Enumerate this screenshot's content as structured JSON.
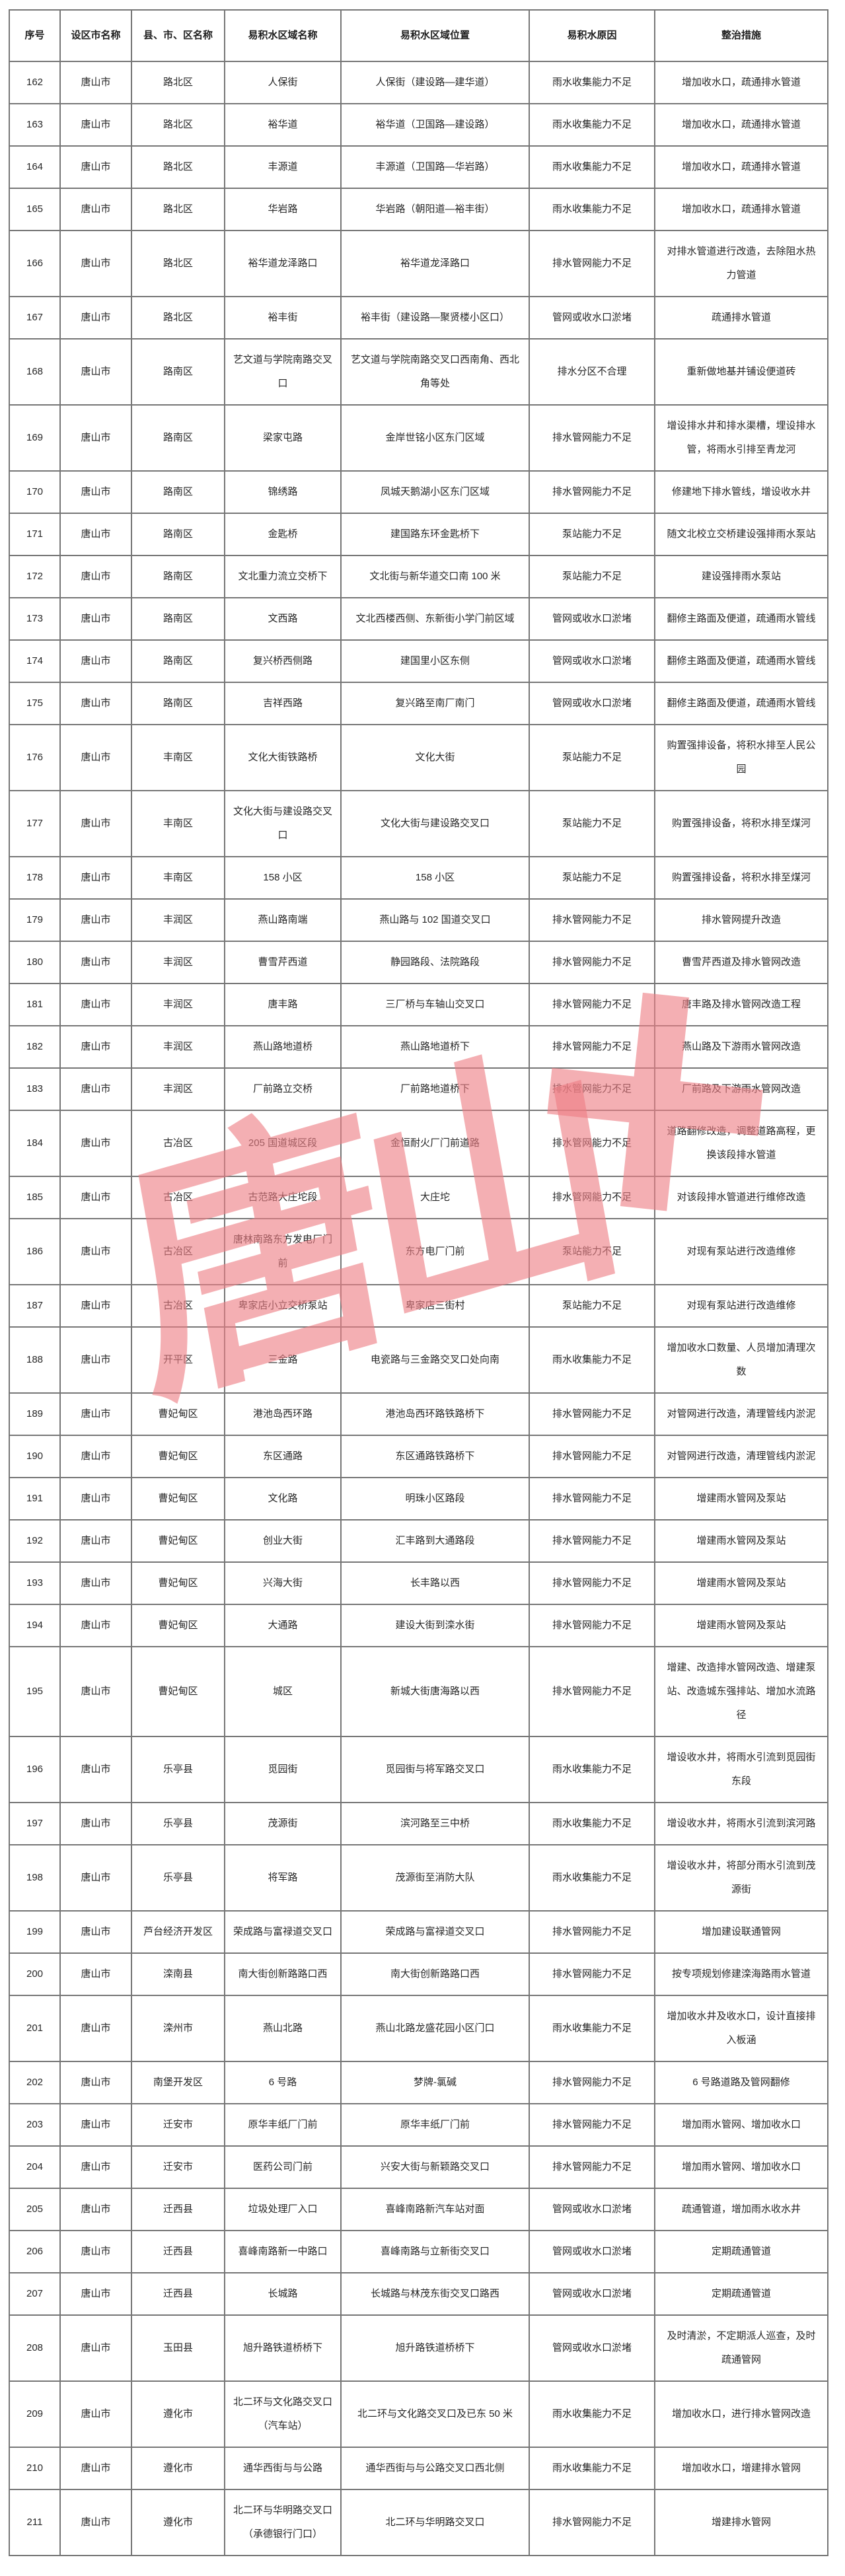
{
  "watermark": {
    "text": "唐山",
    "plus": "+",
    "color": "rgba(238,126,133,0.62)"
  },
  "table": {
    "border_color": "#767676",
    "headers": [
      "序号",
      "设区市名称",
      "县、市、区名称",
      "易积水区域名称",
      "易积水区域位置",
      "易积水原因",
      "整治措施"
    ],
    "rows": [
      [
        "162",
        "唐山市",
        "路北区",
        "人保街",
        "人保街（建设路—建华道）",
        "雨水收集能力不足",
        "增加收水口，疏通排水管道"
      ],
      [
        "163",
        "唐山市",
        "路北区",
        "裕华道",
        "裕华道（卫国路—建设路）",
        "雨水收集能力不足",
        "增加收水口，疏通排水管道"
      ],
      [
        "164",
        "唐山市",
        "路北区",
        "丰源道",
        "丰源道（卫国路—华岩路）",
        "雨水收集能力不足",
        "增加收水口，疏通排水管道"
      ],
      [
        "165",
        "唐山市",
        "路北区",
        "华岩路",
        "华岩路（朝阳道—裕丰街）",
        "雨水收集能力不足",
        "增加收水口，疏通排水管道"
      ],
      [
        "166",
        "唐山市",
        "路北区",
        "裕华道龙泽路口",
        "裕华道龙泽路口",
        "排水管网能力不足",
        "对排水管道进行改造，去除阻水热力管道"
      ],
      [
        "167",
        "唐山市",
        "路北区",
        "裕丰街",
        "裕丰街（建设路—聚贤楼小区口）",
        "管网或收水口淤堵",
        "疏通排水管道"
      ],
      [
        "168",
        "唐山市",
        "路南区",
        "艺文道与学院南路交叉口",
        "艺文道与学院南路交叉口西南角、西北角等处",
        "排水分区不合理",
        "重新做地基并铺设便道砖"
      ],
      [
        "169",
        "唐山市",
        "路南区",
        "梁家屯路",
        "金岸世铭小区东门区域",
        "排水管网能力不足",
        "增设排水井和排水渠槽，埋设排水管，将雨水引排至青龙河"
      ],
      [
        "170",
        "唐山市",
        "路南区",
        "锦绣路",
        "凤城天鹅湖小区东门区域",
        "排水管网能力不足",
        "修建地下排水管线，增设收水井"
      ],
      [
        "171",
        "唐山市",
        "路南区",
        "金匙桥",
        "建国路东环金匙桥下",
        "泵站能力不足",
        "随文北校立交桥建设强排雨水泵站"
      ],
      [
        "172",
        "唐山市",
        "路南区",
        "文北重力流立交桥下",
        "文北街与新华道交口南 100 米",
        "泵站能力不足",
        "建设强排雨水泵站"
      ],
      [
        "173",
        "唐山市",
        "路南区",
        "文西路",
        "文北西楼西侧、东新街小学门前区域",
        "管网或收水口淤堵",
        "翻修主路面及便道，疏通雨水管线"
      ],
      [
        "174",
        "唐山市",
        "路南区",
        "复兴桥西侧路",
        "建国里小区东侧",
        "管网或收水口淤堵",
        "翻修主路面及便道，疏通雨水管线"
      ],
      [
        "175",
        "唐山市",
        "路南区",
        "吉祥西路",
        "复兴路至南厂南门",
        "管网或收水口淤堵",
        "翻修主路面及便道，疏通雨水管线"
      ],
      [
        "176",
        "唐山市",
        "丰南区",
        "文化大街铁路桥",
        "文化大街",
        "泵站能力不足",
        "购置强排设备，将积水排至人民公园"
      ],
      [
        "177",
        "唐山市",
        "丰南区",
        "文化大街与建设路交叉口",
        "文化大街与建设路交叉口",
        "泵站能力不足",
        "购置强排设备，将积水排至煤河"
      ],
      [
        "178",
        "唐山市",
        "丰南区",
        "158 小区",
        "158 小区",
        "泵站能力不足",
        "购置强排设备，将积水排至煤河"
      ],
      [
        "179",
        "唐山市",
        "丰润区",
        "燕山路南端",
        "燕山路与 102 国道交叉口",
        "排水管网能力不足",
        "排水管网提升改造"
      ],
      [
        "180",
        "唐山市",
        "丰润区",
        "曹雪芹西道",
        "静园路段、法院路段",
        "排水管网能力不足",
        "曹雪芹西道及排水管网改造"
      ],
      [
        "181",
        "唐山市",
        "丰润区",
        "唐丰路",
        "三厂桥与车轴山交叉口",
        "排水管网能力不足",
        "唐丰路及排水管网改造工程"
      ],
      [
        "182",
        "唐山市",
        "丰润区",
        "燕山路地道桥",
        "燕山路地道桥下",
        "排水管网能力不足",
        "燕山路及下游雨水管网改造"
      ],
      [
        "183",
        "唐山市",
        "丰润区",
        "厂前路立交桥",
        "厂前路地道桥下",
        "排水管网能力不足",
        "厂前路及下游雨水管网改造"
      ],
      [
        "184",
        "唐山市",
        "古冶区",
        "205 国道城区段",
        "金恒耐火厂门前道路",
        "排水管网能力不足",
        "道路翻修改造，调整道路高程，更换该段排水管道"
      ],
      [
        "185",
        "唐山市",
        "古冶区",
        "古范路大庄坨段",
        "大庄坨",
        "排水管网能力不足",
        "对该段排水管道进行维修改造"
      ],
      [
        "186",
        "唐山市",
        "古冶区",
        "唐林南路东方发电厂门前",
        "东方电厂门前",
        "泵站能力不足",
        "对现有泵站进行改造维修"
      ],
      [
        "187",
        "唐山市",
        "古冶区",
        "卑家店小立交桥泵站",
        "卑家店三街村",
        "泵站能力不足",
        "对现有泵站进行改造维修"
      ],
      [
        "188",
        "唐山市",
        "开平区",
        "三金路",
        "电瓷路与三金路交叉口处向南",
        "雨水收集能力不足",
        "增加收水口数量、人员增加清理次数"
      ],
      [
        "189",
        "唐山市",
        "曹妃甸区",
        "港池岛西环路",
        "港池岛西环路铁路桥下",
        "排水管网能力不足",
        "对管网进行改造，清理管线内淤泥"
      ],
      [
        "190",
        "唐山市",
        "曹妃甸区",
        "东区通路",
        "东区通路铁路桥下",
        "排水管网能力不足",
        "对管网进行改造，清理管线内淤泥"
      ],
      [
        "191",
        "唐山市",
        "曹妃甸区",
        "文化路",
        "明珠小区路段",
        "排水管网能力不足",
        "增建雨水管网及泵站"
      ],
      [
        "192",
        "唐山市",
        "曹妃甸区",
        "创业大街",
        "汇丰路到大通路段",
        "排水管网能力不足",
        "增建雨水管网及泵站"
      ],
      [
        "193",
        "唐山市",
        "曹妃甸区",
        "兴海大街",
        "长丰路以西",
        "排水管网能力不足",
        "增建雨水管网及泵站"
      ],
      [
        "194",
        "唐山市",
        "曹妃甸区",
        "大通路",
        "建设大街到滦水街",
        "排水管网能力不足",
        "增建雨水管网及泵站"
      ],
      [
        "195",
        "唐山市",
        "曹妃甸区",
        "城区",
        "新城大街唐海路以西",
        "排水管网能力不足",
        "增建、改造排水管网改造、增建泵站、改造城东强排站、增加水流路径"
      ],
      [
        "196",
        "唐山市",
        "乐亭县",
        "觅园街",
        "觅园街与将军路交叉口",
        "雨水收集能力不足",
        "增设收水井，将雨水引流到觅园街东段"
      ],
      [
        "197",
        "唐山市",
        "乐亭县",
        "茂源街",
        "滨河路至三中桥",
        "雨水收集能力不足",
        "增设收水井，将雨水引流到滨河路"
      ],
      [
        "198",
        "唐山市",
        "乐亭县",
        "将军路",
        "茂源街至消防大队",
        "雨水收集能力不足",
        "增设收水井，将部分雨水引流到茂源街"
      ],
      [
        "199",
        "唐山市",
        "芦台经济开发区",
        "荣成路与富禄道交叉口",
        "荣成路与富禄道交叉口",
        "排水管网能力不足",
        "增加建设联通管网"
      ],
      [
        "200",
        "唐山市",
        "滦南县",
        "南大街创新路路口西",
        "南大街创新路路口西",
        "排水管网能力不足",
        "按专项规划修建滦海路雨水管道"
      ],
      [
        "201",
        "唐山市",
        "滦州市",
        "燕山北路",
        "燕山北路龙盛花园小区门口",
        "雨水收集能力不足",
        "增加收水井及收水口，设计直接排入板涵"
      ],
      [
        "202",
        "唐山市",
        "南堡开发区",
        "6 号路",
        "梦牌-氯碱",
        "排水管网能力不足",
        "6 号路道路及管网翻修"
      ],
      [
        "203",
        "唐山市",
        "迁安市",
        "原华丰纸厂门前",
        "原华丰纸厂门前",
        "排水管网能力不足",
        "增加雨水管网、增加收水口"
      ],
      [
        "204",
        "唐山市",
        "迁安市",
        "医药公司门前",
        "兴安大街与新颖路交叉口",
        "排水管网能力不足",
        "增加雨水管网、增加收水口"
      ],
      [
        "205",
        "唐山市",
        "迁西县",
        "垃圾处理厂入口",
        "喜峰南路新汽车站对面",
        "管网或收水口淤堵",
        "疏通管道，增加雨水收水井"
      ],
      [
        "206",
        "唐山市",
        "迁西县",
        "喜峰南路新一中路口",
        "喜峰南路与立新街交叉口",
        "管网或收水口淤堵",
        "定期疏通管道"
      ],
      [
        "207",
        "唐山市",
        "迁西县",
        "长城路",
        "长城路与林茂东街交叉口路西",
        "管网或收水口淤堵",
        "定期疏通管道"
      ],
      [
        "208",
        "唐山市",
        "玉田县",
        "旭升路铁道桥桥下",
        "旭升路铁道桥桥下",
        "管网或收水口淤堵",
        "及时清淤，不定期派人巡查，及时疏通管网"
      ],
      [
        "209",
        "唐山市",
        "遵化市",
        "北二环与文化路交叉口（汽车站）",
        "北二环与文化路交叉口及已东 50 米",
        "雨水收集能力不足",
        "增加收水口，进行排水管网改造"
      ],
      [
        "210",
        "唐山市",
        "遵化市",
        "通华西街与与公路",
        "通华西街与与公路交叉口西北侧",
        "雨水收集能力不足",
        "增加收水口，增建排水管网"
      ],
      [
        "211",
        "唐山市",
        "遵化市",
        "北二环与华明路交叉口（承德银行门口）",
        "北二环与华明路交叉口",
        "排水管网能力不足",
        "增建排水管网"
      ]
    ]
  }
}
